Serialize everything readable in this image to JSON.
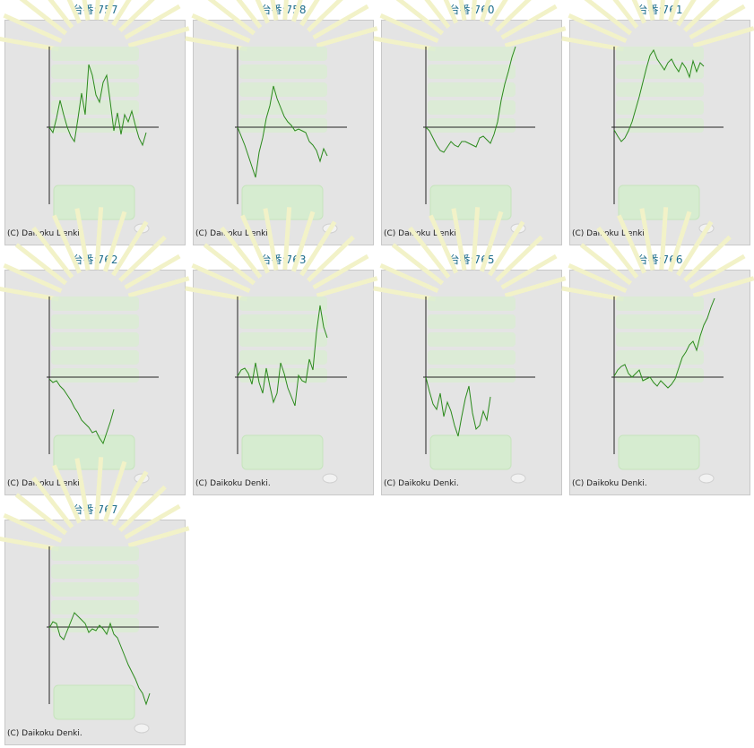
{
  "chart_data": [
    {
      "type": "line",
      "title": "台番:757",
      "footer": "(C) Daikoku Denki.",
      "color": "#2b8a1c",
      "xlim": [
        0,
        30
      ],
      "ylim": [
        -86,
        90
      ],
      "values": [
        0,
        -6,
        10,
        30,
        14,
        0,
        -10,
        -16,
        10,
        38,
        14,
        70,
        58,
        36,
        28,
        50,
        58,
        28,
        -4,
        16,
        -8,
        14,
        6,
        18,
        2,
        -12,
        -20,
        -6
      ]
    },
    {
      "type": "line",
      "title": "台番:758",
      "footer": "(C) Daikoku Denki.",
      "color": "#2b8a1c",
      "xlim": [
        0,
        30
      ],
      "ylim": [
        -86,
        90
      ],
      "values": [
        0,
        -10,
        -20,
        -32,
        -44,
        -56,
        -28,
        -12,
        10,
        24,
        46,
        32,
        22,
        12,
        6,
        2,
        -4,
        -2,
        -4,
        -6,
        -16,
        -20,
        -26,
        -38,
        -24,
        -32
      ]
    },
    {
      "type": "line",
      "title": "台番:760",
      "footer": "(C) Daikoku Denki.",
      "color": "#2b8a1c",
      "xlim": [
        0,
        30
      ],
      "ylim": [
        -86,
        90
      ],
      "values": [
        0,
        -4,
        -12,
        -20,
        -26,
        -28,
        -22,
        -16,
        -20,
        -22,
        -16,
        -16,
        -18,
        -20,
        -22,
        -12,
        -10,
        -14,
        -18,
        -8,
        6,
        30,
        48,
        62,
        78,
        90
      ]
    },
    {
      "type": "line",
      "title": "台番:761",
      "footer": "(C) Daikoku Denki.",
      "color": "#2b8a1c",
      "xlim": [
        0,
        30
      ],
      "ylim": [
        -86,
        90
      ],
      "values": [
        -3,
        -10,
        -16,
        -12,
        -4,
        6,
        20,
        34,
        50,
        66,
        80,
        86,
        76,
        70,
        64,
        72,
        76,
        68,
        62,
        72,
        66,
        56,
        74,
        62,
        72,
        68
      ]
    },
    {
      "type": "line",
      "title": "台番:762",
      "footer": "(C) Daikoku Denki.",
      "color": "#2b8a1c",
      "xlim": [
        0,
        30
      ],
      "ylim": [
        -86,
        90
      ],
      "values": [
        -2,
        -6,
        -4,
        -10,
        -14,
        -20,
        -26,
        -34,
        -40,
        -48,
        -52,
        -56,
        -62,
        -60,
        -68,
        -74,
        -62,
        -50,
        -36
      ]
    },
    {
      "type": "line",
      "title": "台番:763",
      "footer": "(C) Daikoku Denki.",
      "color": "#2b8a1c",
      "xlim": [
        0,
        30
      ],
      "ylim": [
        -86,
        90
      ],
      "values": [
        1,
        8,
        10,
        4,
        -8,
        16,
        -6,
        -18,
        10,
        -10,
        -28,
        -18,
        16,
        4,
        -12,
        -22,
        -32,
        2,
        -4,
        -6,
        20,
        8,
        50,
        80,
        56,
        44
      ]
    },
    {
      "type": "line",
      "title": "台番:765",
      "footer": "(C) Daikoku Denki.",
      "color": "#2b8a1c",
      "xlim": [
        0,
        30
      ],
      "ylim": [
        -86,
        90
      ],
      "values": [
        0,
        -16,
        -30,
        -36,
        -18,
        -44,
        -28,
        -38,
        -54,
        -66,
        -44,
        -24,
        -10,
        -40,
        -58,
        -54,
        -38,
        -48,
        -22
      ]
    },
    {
      "type": "line",
      "title": "台番:766",
      "footer": "(C) Daikoku Denki.",
      "color": "#2b8a1c",
      "xlim": [
        0,
        30
      ],
      "ylim": [
        -86,
        90
      ],
      "values": [
        1,
        8,
        12,
        14,
        4,
        0,
        4,
        8,
        -4,
        -2,
        0,
        -6,
        -10,
        -4,
        -8,
        -12,
        -8,
        -2,
        10,
        22,
        28,
        36,
        40,
        30,
        46,
        58,
        66,
        78,
        88
      ]
    },
    {
      "type": "line",
      "title": "台番:767",
      "footer": "(C) Daikoku Denki.",
      "color": "#2b8a1c",
      "xlim": [
        0,
        30
      ],
      "ylim": [
        -86,
        90
      ],
      "values": [
        -1,
        6,
        4,
        -10,
        -14,
        -4,
        6,
        16,
        12,
        8,
        4,
        -6,
        -2,
        -4,
        2,
        -2,
        -8,
        4,
        -8,
        -12,
        -22,
        -32,
        -42,
        -50,
        -58,
        -68,
        -74,
        -86,
        -74
      ]
    }
  ]
}
